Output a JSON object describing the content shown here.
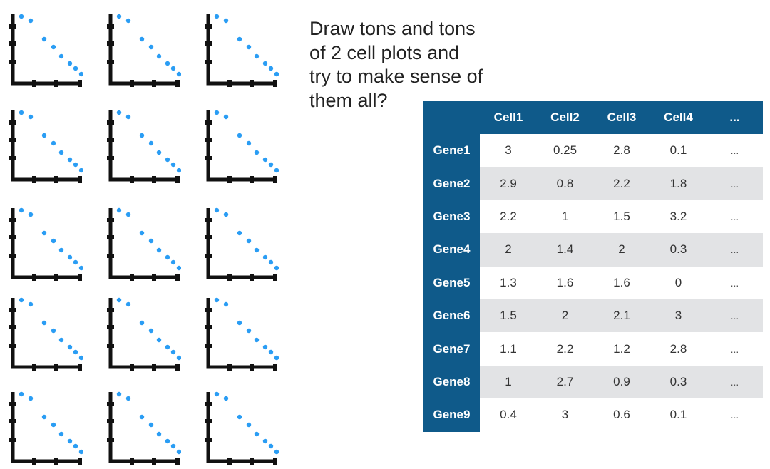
{
  "caption": {
    "lines": [
      "Draw tons and tons",
      "of 2 cell plots and",
      "try to make sense of",
      "them all?"
    ]
  },
  "colors": {
    "table_header_bg": "#0f5a8a",
    "table_header_text": "#ffffff",
    "row_stripe": "#e2e3e5",
    "plot_axis": "#111111",
    "plot_point": "#2a9df4"
  },
  "plots": {
    "rows": 5,
    "cols": 3,
    "axis_ticks_x": 3,
    "axis_ticks_y": 3,
    "points_per_plot": 8
  },
  "table": {
    "corner": "",
    "columns": [
      "Cell1",
      "Cell2",
      "Cell3",
      "Cell4",
      "..."
    ],
    "rows": [
      {
        "gene": "Gene1",
        "values": [
          "3",
          "0.25",
          "2.8",
          "0.1",
          "..."
        ]
      },
      {
        "gene": "Gene2",
        "values": [
          "2.9",
          "0.8",
          "2.2",
          "1.8",
          "..."
        ]
      },
      {
        "gene": "Gene3",
        "values": [
          "2.2",
          "1",
          "1.5",
          "3.2",
          "..."
        ]
      },
      {
        "gene": "Gene4",
        "values": [
          "2",
          "1.4",
          "2",
          "0.3",
          "..."
        ]
      },
      {
        "gene": "Gene5",
        "values": [
          "1.3",
          "1.6",
          "1.6",
          "0",
          "..."
        ]
      },
      {
        "gene": "Gene6",
        "values": [
          "1.5",
          "2",
          "2.1",
          "3",
          "..."
        ]
      },
      {
        "gene": "Gene7",
        "values": [
          "1.1",
          "2.2",
          "1.2",
          "2.8",
          "..."
        ]
      },
      {
        "gene": "Gene8",
        "values": [
          "1",
          "2.7",
          "0.9",
          "0.3",
          "..."
        ]
      },
      {
        "gene": "Gene9",
        "values": [
          "0.4",
          "3",
          "0.6",
          "0.1",
          "..."
        ]
      }
    ]
  }
}
